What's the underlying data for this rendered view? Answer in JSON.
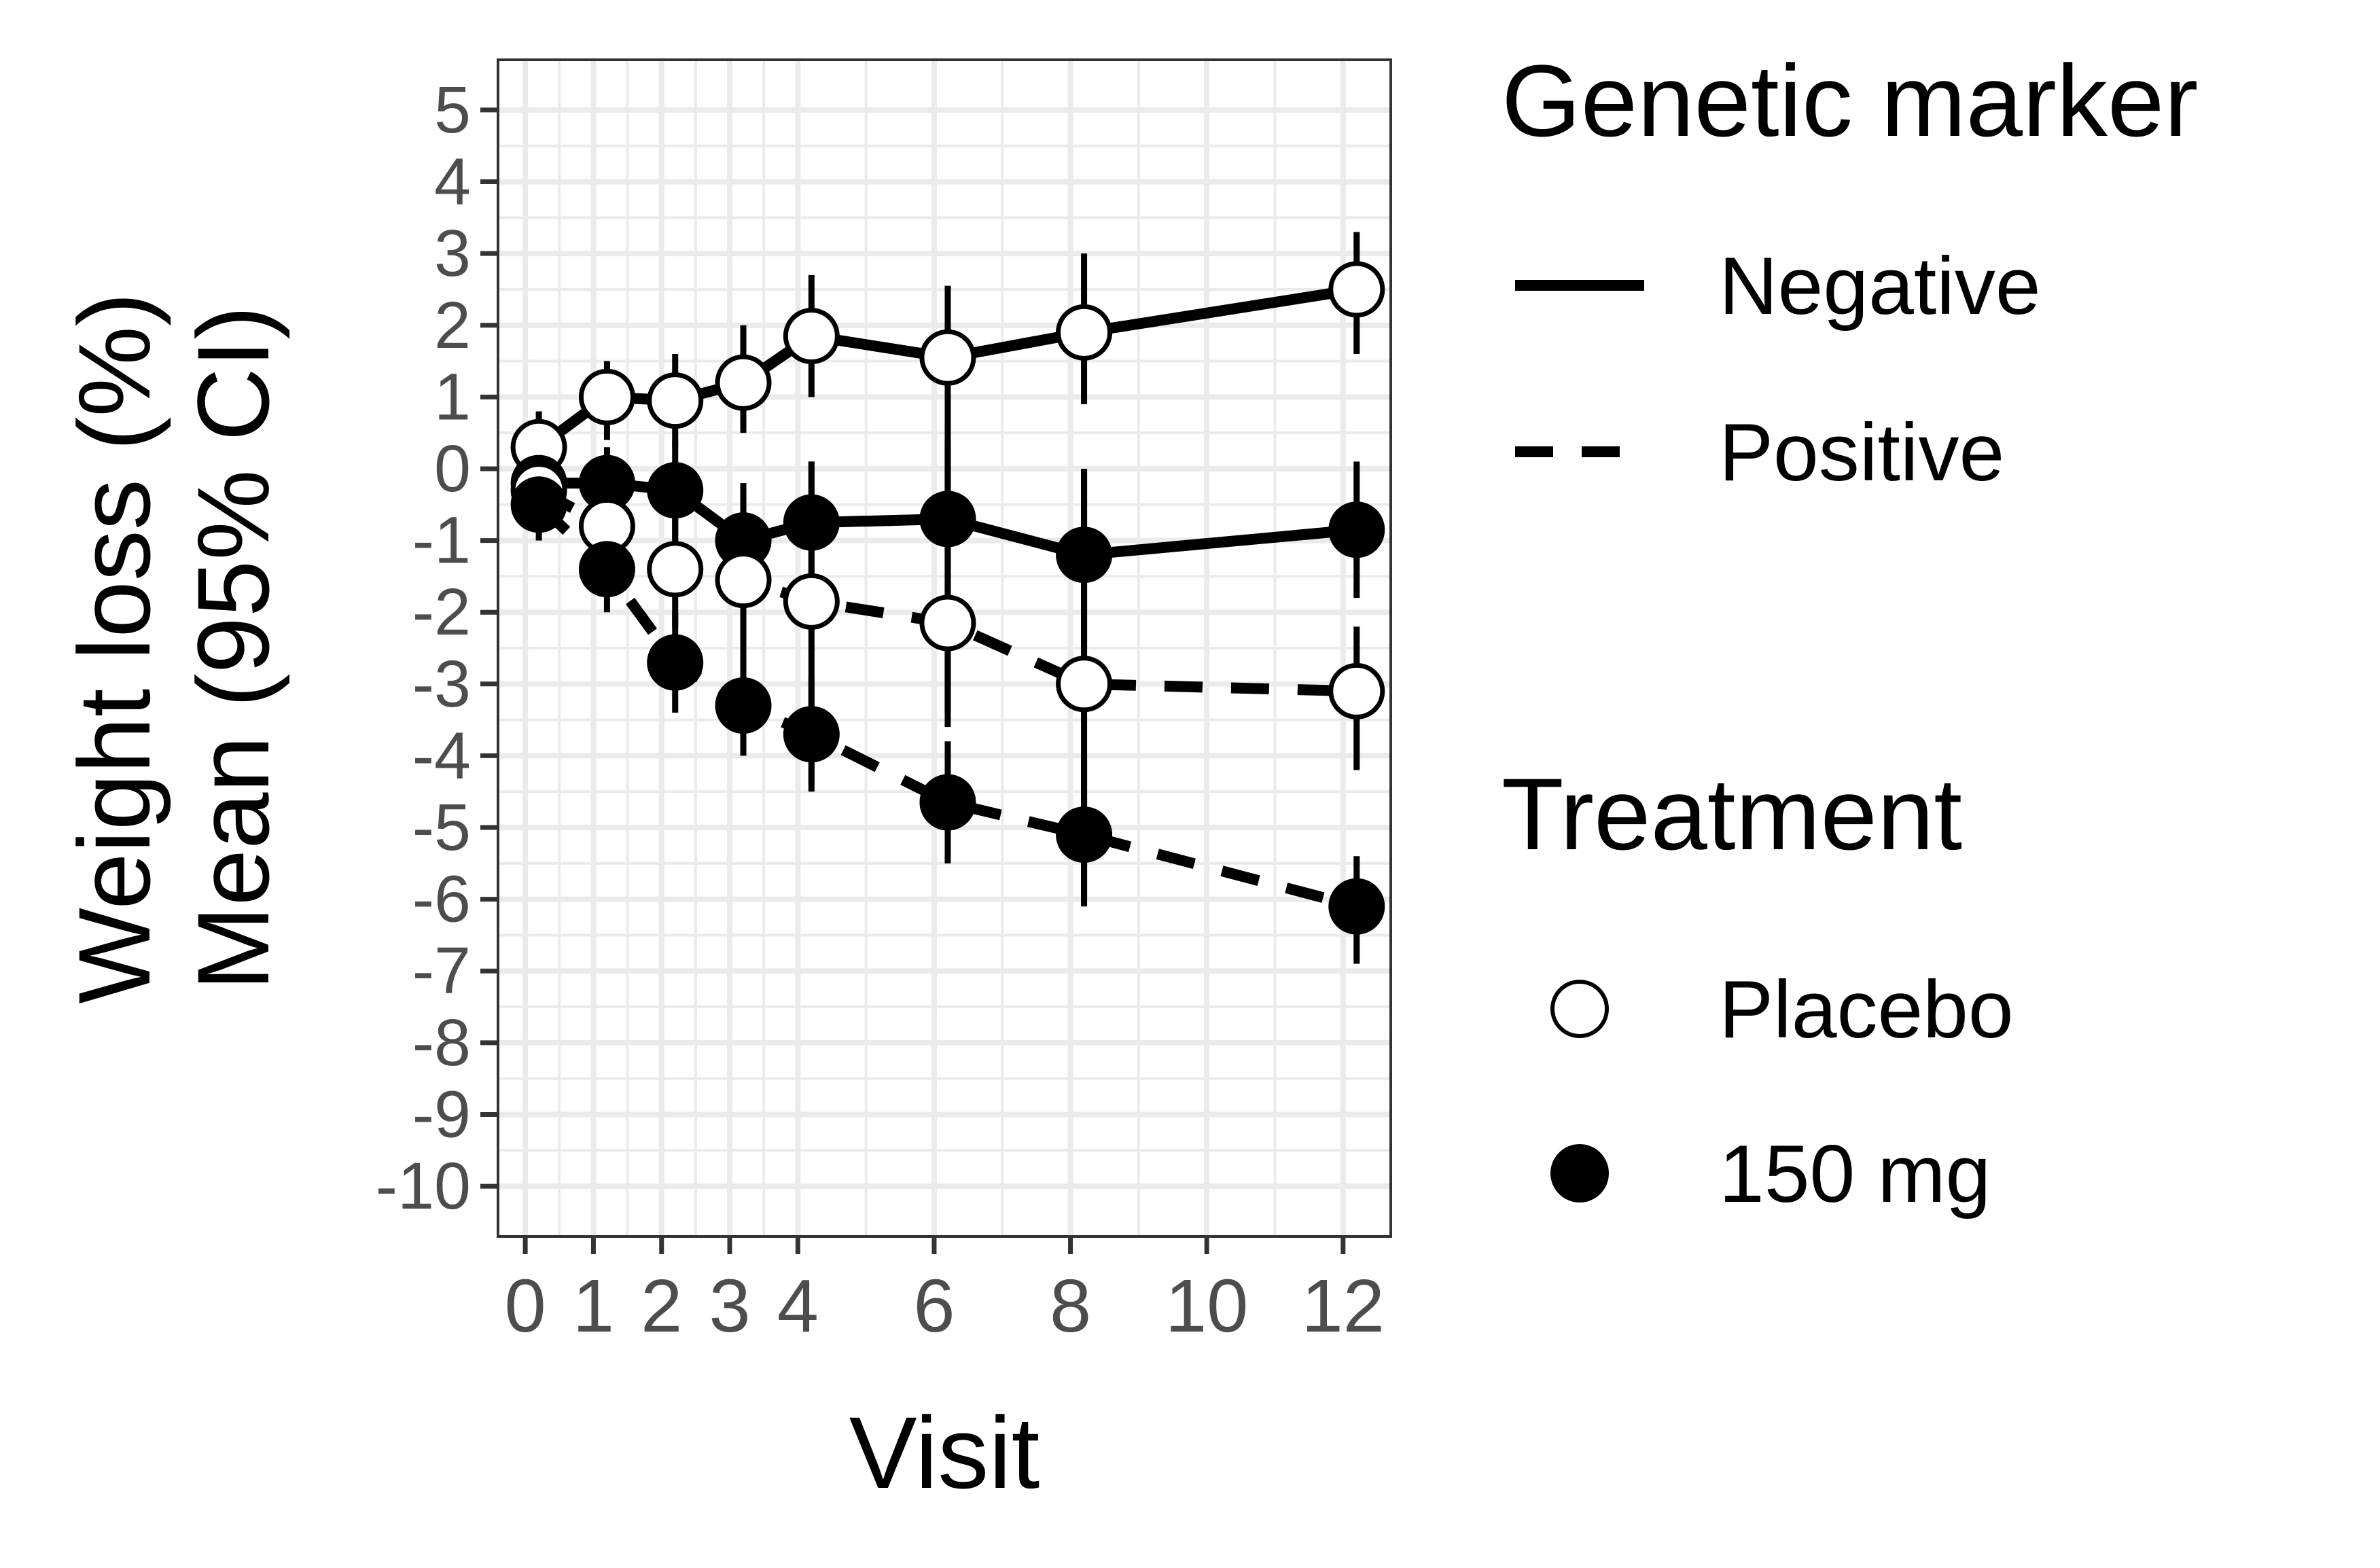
{
  "chart_data": {
    "type": "line",
    "xlabel": "Visit",
    "ylabel_lines": [
      "Weight loss (%)",
      "Mean (95% CI)"
    ],
    "x_ticks": [
      0,
      1,
      2,
      3,
      4,
      6,
      8,
      10,
      12
    ],
    "y_ticks": [
      5,
      4,
      3,
      2,
      1,
      0,
      -1,
      -2,
      -3,
      -4,
      -5,
      -6,
      -7,
      -8,
      -9,
      -10
    ],
    "xlim": [
      -0.4,
      12.7
    ],
    "ylim": [
      -10.7,
      5.7
    ],
    "grid": true,
    "x": [
      0,
      1,
      2,
      3,
      4,
      6,
      8,
      12
    ],
    "series": [
      {
        "marker_group": "Negative",
        "treatment": "Placebo",
        "line": "solid",
        "marker": "open",
        "values": [
          0.3,
          1.0,
          0.95,
          1.2,
          1.85,
          1.55,
          1.9,
          2.5
        ],
        "ci_low": [
          -0.3,
          0.4,
          0.3,
          0.5,
          1.0,
          -3.4,
          0.9,
          1.6
        ],
        "ci_high": [
          0.8,
          1.5,
          1.6,
          2.0,
          2.7,
          2.55,
          3.0,
          3.3
        ]
      },
      {
        "marker_group": "Negative",
        "treatment": "150 mg",
        "line": "solid",
        "marker": "filled",
        "values": [
          -0.2,
          -0.2,
          -0.3,
          -1.0,
          -0.75,
          -0.7,
          -1.2,
          -0.85
        ],
        "ci_low": [
          -0.6,
          -0.7,
          -1.0,
          -1.8,
          -1.5,
          -1.5,
          -2.5,
          -1.8
        ],
        "ci_high": [
          0.2,
          0.3,
          0.4,
          -0.2,
          0.1,
          0.4,
          0.0,
          0.1
        ]
      },
      {
        "marker_group": "Positive",
        "treatment": "Placebo",
        "line": "dashed",
        "marker": "open",
        "values": [
          -0.3,
          -0.8,
          -1.4,
          -1.55,
          -1.85,
          -2.15,
          -3.0,
          -3.1
        ],
        "ci_low": [
          -0.9,
          -1.5,
          -2.2,
          -2.5,
          -4.4,
          -3.6,
          -6.0,
          -4.2
        ],
        "ci_high": [
          0.3,
          0.0,
          -0.5,
          -0.6,
          0.1,
          -0.8,
          0.0,
          -2.2
        ]
      },
      {
        "marker_group": "Positive",
        "treatment": "150 mg",
        "line": "dashed",
        "marker": "filled",
        "values": [
          -0.5,
          -1.4,
          -2.7,
          -3.3,
          -3.7,
          -4.65,
          -5.1,
          -6.1
        ],
        "ci_low": [
          -1.0,
          -2.0,
          -3.4,
          -4.0,
          -4.5,
          -5.5,
          -6.1,
          -6.9
        ],
        "ci_high": [
          0.0,
          -0.7,
          -2.0,
          -2.5,
          -2.9,
          -3.8,
          -4.0,
          -5.4
        ]
      }
    ],
    "legend": {
      "placement": "right",
      "linetype_title": "Genetic marker",
      "linetype_items": [
        {
          "label": "Negative",
          "line": "solid"
        },
        {
          "label": "Positive",
          "line": "dashed"
        }
      ],
      "shape_title": "Treatment",
      "shape_items": [
        {
          "label": "Placebo",
          "marker": "open"
        },
        {
          "label": "150 mg",
          "marker": "filled"
        }
      ]
    },
    "colors": {
      "line": "#000000",
      "grid": "#ebebeb",
      "panel_border": "#333333",
      "tick_text": "#4d4d4d",
      "open_fill": "#ffffff",
      "filled_fill": "#000000"
    }
  }
}
